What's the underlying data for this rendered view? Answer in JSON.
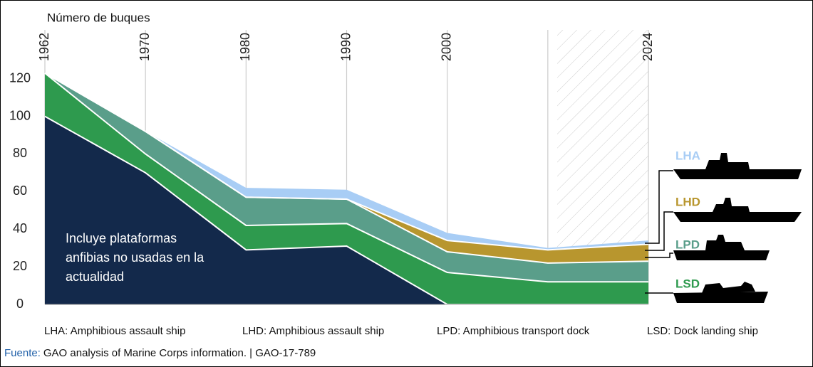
{
  "chart_data": {
    "type": "stacked-area",
    "y_label": "Número de buques",
    "categories": [
      "1962",
      "1970",
      "1980",
      "1990",
      "2000",
      null,
      "2024"
    ],
    "ylim": [
      0,
      146
    ],
    "yticks": [
      0,
      20,
      40,
      60,
      80,
      100,
      120
    ],
    "grid": true,
    "series": [
      {
        "color": "#13294b",
        "values": [
          100,
          70,
          29,
          31,
          0,
          0,
          0
        ]
      },
      {
        "name": "LSD",
        "color": "#2e9a4e",
        "values": [
          23,
          10,
          13,
          12,
          17,
          12,
          12
        ]
      },
      {
        "name": "LPD",
        "color": "#5a9e8a",
        "values": [
          0,
          12,
          15,
          13,
          11,
          10,
          11
        ]
      },
      {
        "name": "LHD",
        "color": "#b8962e",
        "values": [
          0,
          0,
          0,
          0,
          6,
          7,
          9
        ]
      },
      {
        "name": "LHA",
        "color": "#a8cdf5",
        "values": [
          0,
          0,
          5,
          5,
          4,
          1,
          2
        ]
      }
    ],
    "annotation": [
      "Incluye plataformas",
      "anfibias no usadas en la",
      "actualidad"
    ],
    "definitions": [
      "LHA: Amphibious assault ship",
      "LHD: Amphibious assault ship",
      "LPD: Amphibious transport dock",
      "LSD: Dock landing ship"
    ],
    "source_label": "Fuente:",
    "source": "GAO analysis of Marine Corps information.  |  GAO-17-789"
  }
}
